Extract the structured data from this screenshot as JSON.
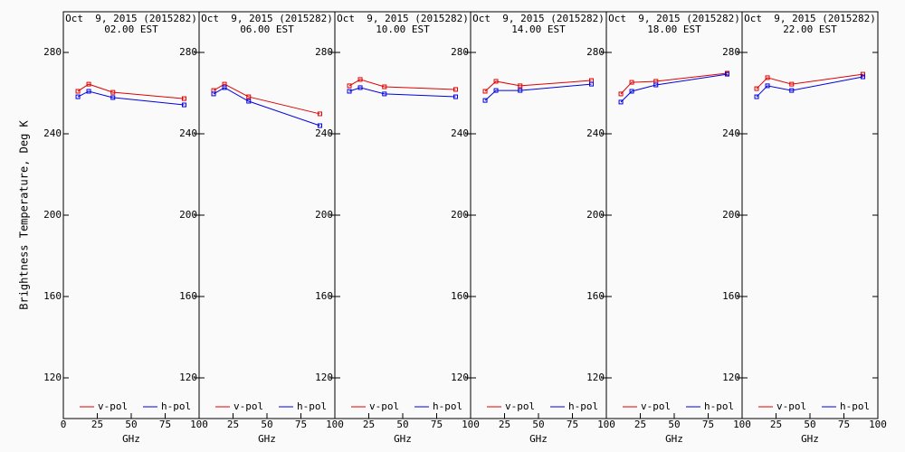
{
  "chart_data": [
    {
      "type": "line",
      "title": "Oct  9, 2015 (2015282)",
      "subtitle": "02.00 EST",
      "x_label": "GHz",
      "y_label": "Brightness Temperature, Deg K",
      "x": [
        10.7,
        18.7,
        36.5,
        89
      ],
      "xlim": [
        0,
        100
      ],
      "xticks": [
        0,
        25,
        50,
        75,
        100
      ],
      "ylim": [
        100,
        300
      ],
      "yticks": [
        120,
        160,
        200,
        240,
        280
      ],
      "series": [
        {
          "name": "v-pol",
          "color": "#e00000",
          "values": [
            260.9,
            264.4,
            260.4,
            257.3
          ]
        },
        {
          "name": "h-pol",
          "color": "#0000e0",
          "values": [
            258.2,
            260.9,
            257.8,
            254.2
          ]
        }
      ]
    },
    {
      "type": "line",
      "title": "Oct  9, 2015 (2015282)",
      "subtitle": "06.00 EST",
      "x_label": "GHz",
      "x": [
        10.7,
        18.7,
        36.5,
        89
      ],
      "xlim": [
        0,
        100
      ],
      "xticks": [
        25,
        50,
        75,
        100
      ],
      "ylim": [
        100,
        300
      ],
      "yticks": [
        120,
        160,
        200,
        240,
        280
      ],
      "series": [
        {
          "name": "v-pol",
          "color": "#e00000",
          "values": [
            261.3,
            264.4,
            258.2,
            249.8
          ]
        },
        {
          "name": "h-pol",
          "color": "#0000e0",
          "values": [
            259.6,
            262.7,
            256.0,
            244.0
          ]
        }
      ]
    },
    {
      "type": "line",
      "title": "Oct  9, 2015 (2015282)",
      "subtitle": "10.00 EST",
      "x_label": "GHz",
      "x": [
        10.7,
        18.7,
        36.5,
        89
      ],
      "xlim": [
        0,
        100
      ],
      "xticks": [
        25,
        50,
        75,
        100
      ],
      "ylim": [
        100,
        300
      ],
      "yticks": [
        120,
        160,
        200,
        240,
        280
      ],
      "series": [
        {
          "name": "v-pol",
          "color": "#e00000",
          "values": [
            263.6,
            266.7,
            263.1,
            261.8
          ]
        },
        {
          "name": "h-pol",
          "color": "#0000e0",
          "values": [
            260.9,
            262.7,
            259.6,
            258.2
          ]
        }
      ]
    },
    {
      "type": "line",
      "title": "Oct  9, 2015 (2015282)",
      "subtitle": "14.00 EST",
      "x_label": "GHz",
      "x": [
        10.7,
        18.7,
        36.5,
        89
      ],
      "xlim": [
        0,
        100
      ],
      "xticks": [
        25,
        50,
        75,
        100
      ],
      "ylim": [
        100,
        300
      ],
      "yticks": [
        120,
        160,
        200,
        240,
        280
      ],
      "series": [
        {
          "name": "v-pol",
          "color": "#e00000",
          "values": [
            260.9,
            265.8,
            263.6,
            266.2
          ]
        },
        {
          "name": "h-pol",
          "color": "#0000e0",
          "values": [
            256.4,
            261.3,
            261.3,
            264.4
          ]
        }
      ]
    },
    {
      "type": "line",
      "title": "Oct  9, 2015 (2015282)",
      "subtitle": "18.00 EST",
      "x_label": "GHz",
      "x": [
        10.7,
        18.7,
        36.5,
        89
      ],
      "xlim": [
        0,
        100
      ],
      "xticks": [
        25,
        50,
        75,
        100
      ],
      "ylim": [
        100,
        300
      ],
      "yticks": [
        120,
        160,
        200,
        240,
        280
      ],
      "series": [
        {
          "name": "v-pol",
          "color": "#e00000",
          "values": [
            259.6,
            265.3,
            265.8,
            269.8
          ]
        },
        {
          "name": "h-pol",
          "color": "#0000e0",
          "values": [
            255.6,
            260.9,
            264.0,
            269.3
          ]
        }
      ]
    },
    {
      "type": "line",
      "title": "Oct  9, 2015 (2015282)",
      "subtitle": "22.00 EST",
      "x_label": "GHz",
      "x": [
        10.7,
        18.7,
        36.5,
        89
      ],
      "xlim": [
        0,
        100
      ],
      "xticks": [
        25,
        50,
        75,
        100
      ],
      "ylim": [
        100,
        300
      ],
      "yticks": [
        120,
        160,
        200,
        240,
        280
      ],
      "series": [
        {
          "name": "v-pol",
          "color": "#e00000",
          "values": [
            262.2,
            267.6,
            264.4,
            269.3
          ]
        },
        {
          "name": "h-pol",
          "color": "#0000e0",
          "values": [
            258.2,
            263.6,
            261.3,
            268.0
          ]
        }
      ]
    }
  ]
}
